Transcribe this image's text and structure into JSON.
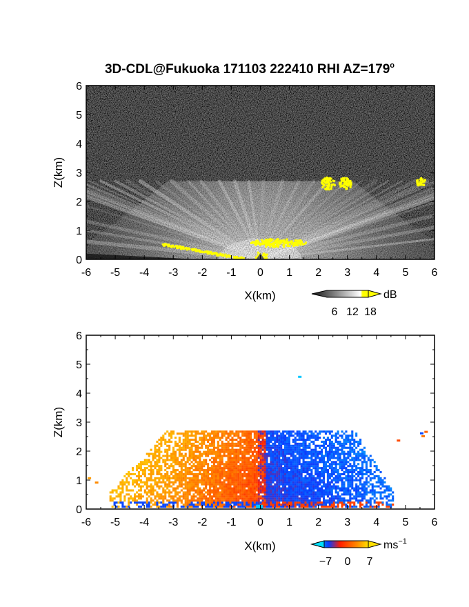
{
  "title": "3D-CDL@Fukuoka 171103 222410 RHI AZ=179",
  "title_degree": "o",
  "colors": {
    "echo_yellow": "#ffff00",
    "frame": "#000000",
    "velocity_scale": [
      "#00e0ff",
      "#0a3cff",
      "#ff1e00",
      "#ffe000"
    ]
  },
  "chart_data": [
    {
      "type": "heatmap",
      "name": "reflectivity",
      "xlabel": "X(km)",
      "ylabel": "Z(km)",
      "xlim": [
        -6,
        6
      ],
      "ylim": [
        0,
        6
      ],
      "x_ticks": [
        "-6",
        "-5",
        "-4",
        "-3",
        "-2",
        "-1",
        "0",
        "1",
        "2",
        "3",
        "4",
        "5",
        "6"
      ],
      "y_ticks": [
        "0",
        "1",
        "2",
        "3",
        "4",
        "5",
        "6"
      ],
      "background": "noise",
      "colorbar": {
        "unit": "dB",
        "ticks": [
          "6",
          "12",
          "18"
        ],
        "range": [
          0,
          21
        ],
        "colormap": "grayscale-to-yellow"
      },
      "strong_echo_patches_km": [
        {
          "x": 2.3,
          "z": 2.65
        },
        {
          "x": 2.9,
          "z": 2.65
        },
        {
          "x": 5.5,
          "z": 2.7
        },
        {
          "x": 0.6,
          "z": 0.6
        },
        {
          "x": -2.5,
          "z": 0.3
        },
        {
          "x": 0.0,
          "z": 0.15
        }
      ],
      "echo_top_km": 2.7
    },
    {
      "type": "heatmap",
      "name": "doppler_velocity",
      "xlabel": "X(km)",
      "ylabel": "Z(km)",
      "xlim": [
        -6,
        6
      ],
      "ylim": [
        0,
        6
      ],
      "x_ticks": [
        "-6",
        "-5",
        "-4",
        "-3",
        "-2",
        "-1",
        "0",
        "1",
        "2",
        "3",
        "4",
        "5",
        "6"
      ],
      "y_ticks": [
        "0",
        "1",
        "2",
        "3",
        "4",
        "5",
        "6"
      ],
      "colorbar": {
        "unit": "ms",
        "unit_exponent": "−1",
        "ticks": [
          "−7",
          "0",
          "7"
        ],
        "range": [
          -10,
          10
        ],
        "colormap": "cyan-blue-red-yellow"
      },
      "velocity_pattern": "negative (toward radar) for X > 0, positive for X < 0",
      "echo_top_km": 2.7
    }
  ]
}
